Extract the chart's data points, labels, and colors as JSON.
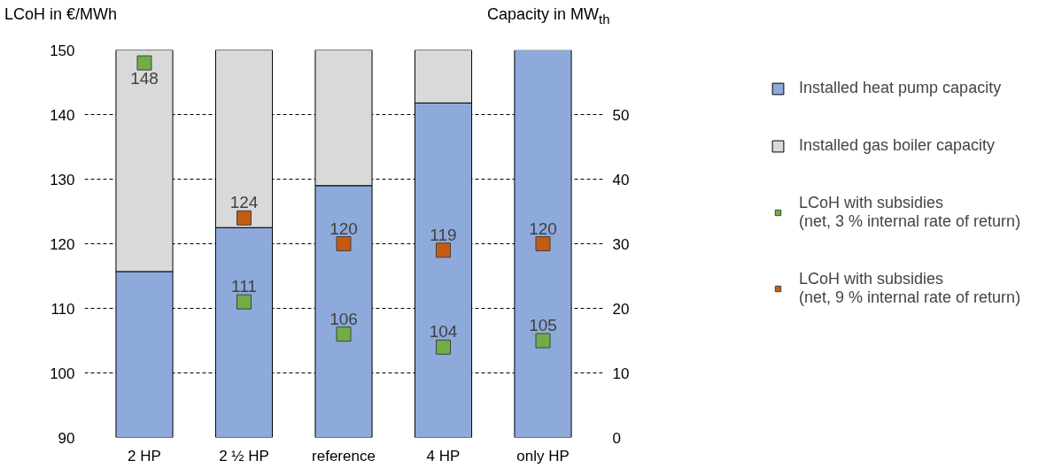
{
  "chart_data": {
    "type": "bar",
    "stacked": true,
    "ylabel": "LCoH in €/MWh",
    "y2label": "Capacity in MW$_{th}$",
    "categories": [
      "2 HP",
      "2 ½ HP",
      "reference",
      "4 HP",
      "only HP"
    ],
    "series": [
      {
        "name": "Installed heat pump capacity",
        "color": "#8eaadb",
        "axis": "y2",
        "values": [
          25.7,
          32.5,
          39,
          51.8,
          60
        ]
      },
      {
        "name": "Installed gas boiler capacity",
        "color": "#d9d9d9",
        "axis": "y2",
        "values": [
          34.3,
          27.5,
          21,
          8.2,
          0
        ]
      },
      {
        "name": "LCoH with subsidies\n(net, 3 % internal rate of return)",
        "type": "scatter",
        "color": "#70ad47",
        "x": [
          "2 HP",
          "2 ½ HP",
          "reference",
          "4 HP",
          "only HP"
        ],
        "values": [
          148,
          111,
          106,
          104,
          105
        ],
        "value_labels": [
          "148",
          "111",
          "106",
          "104",
          "105"
        ]
      },
      {
        "name": "LCoH with subsidies\n(net, 9 % internal rate of return)",
        "type": "scatter",
        "color": "#c55a11",
        "x": [
          "2 HP",
          "2 ½ HP",
          "reference",
          "4 HP",
          "only HP"
        ],
        "values": [
          null,
          124,
          120,
          119,
          120
        ],
        "value_labels": [
          null,
          "124",
          "120",
          "119",
          "120"
        ]
      }
    ],
    "ylim": [
      90,
      150
    ],
    "yticks": [
      90,
      100,
      110,
      120,
      130,
      140,
      150
    ],
    "y2lim": [
      0,
      60
    ],
    "y2ticks": [
      0,
      10,
      20,
      30,
      40,
      50
    ],
    "grid": "y",
    "legend": "right",
    "marker": "square"
  }
}
